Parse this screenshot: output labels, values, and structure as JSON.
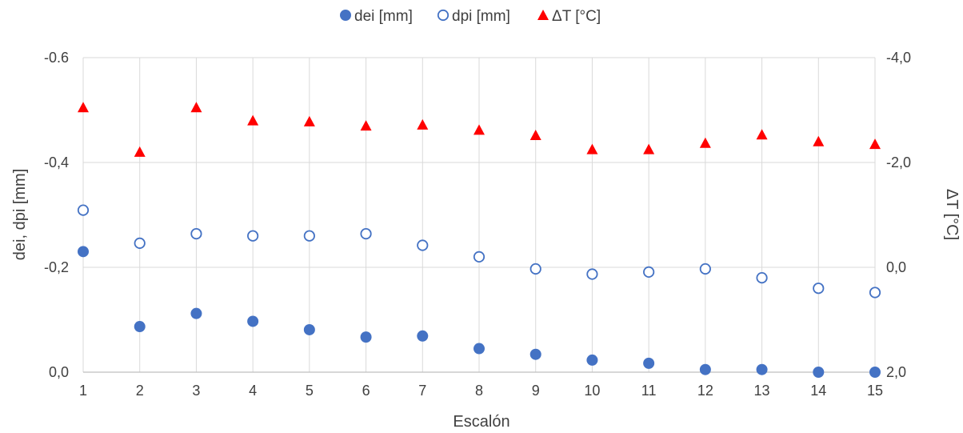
{
  "chart_data": {
    "type": "scatter",
    "title": "",
    "xlabel": "Escalón",
    "ylabel": "dei, dpi [mm]",
    "y2label": "ΔT [°C]",
    "x": [
      1,
      2,
      3,
      4,
      5,
      6,
      7,
      8,
      9,
      10,
      11,
      12,
      13,
      14,
      15
    ],
    "xlim": [
      1,
      15
    ],
    "ylim": [
      0,
      -0.6
    ],
    "y_reversed": true,
    "y2lim": [
      2,
      -4
    ],
    "y2_reversed": true,
    "y_ticks": [
      0.0,
      -0.2,
      -0.4,
      -0.6
    ],
    "y_tick_labels": [
      "0,0",
      "-0,2",
      "-0,4",
      "-0.6"
    ],
    "y2_ticks": [
      2,
      0,
      -2,
      -4
    ],
    "y2_tick_labels": [
      "2,0",
      "0,0",
      "-2,0",
      "-4,0"
    ],
    "grid": true,
    "legend_position": "top",
    "series": [
      {
        "name": "dei [mm]",
        "axis": "left",
        "marker": "filled-circle",
        "color": "#4472c4",
        "values": [
          -0.23,
          -0.087,
          -0.112,
          -0.097,
          -0.081,
          -0.067,
          -0.069,
          -0.045,
          -0.034,
          -0.023,
          -0.017,
          -0.005,
          -0.005,
          0.0,
          0.0
        ]
      },
      {
        "name": "dpi [mm]",
        "axis": "left",
        "marker": "hollow-circle",
        "color": "#4472c4",
        "values": [
          -0.309,
          -0.246,
          -0.264,
          -0.26,
          -0.26,
          -0.264,
          -0.242,
          -0.22,
          -0.197,
          -0.187,
          -0.191,
          -0.197,
          -0.18,
          -0.16,
          -0.152
        ]
      },
      {
        "name": "ΔT [°C]",
        "axis": "right",
        "marker": "triangle",
        "color": "#ff0000",
        "values": [
          -3.05,
          -2.2,
          -3.05,
          -2.8,
          -2.78,
          -2.7,
          -2.72,
          -2.62,
          -2.52,
          -2.25,
          -2.25,
          -2.37,
          -2.53,
          -2.4,
          -2.35
        ]
      }
    ]
  }
}
